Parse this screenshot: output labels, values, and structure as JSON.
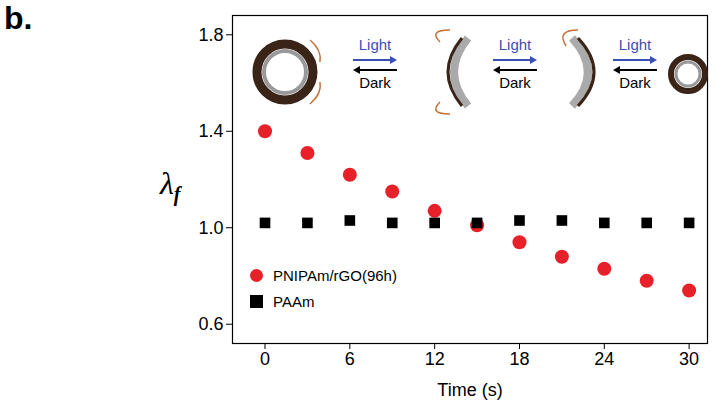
{
  "chart_data": {
    "type": "scatter",
    "panel_label": "b.",
    "x_label": "Time (s)",
    "y_label": "λf",
    "x": [
      0,
      3,
      6,
      9,
      12,
      15,
      18,
      21,
      24,
      27,
      30
    ],
    "series": [
      {
        "name": "PNIPAm/rGO(96h)",
        "color": "#e8202a",
        "marker": "circle",
        "values": [
          1.4,
          1.31,
          1.22,
          1.15,
          1.07,
          1.01,
          0.94,
          0.88,
          0.83,
          0.78,
          0.74
        ]
      },
      {
        "name": "PAAm",
        "color": "#000000",
        "marker": "square",
        "values": [
          1.02,
          1.02,
          1.03,
          1.02,
          1.02,
          1.02,
          1.03,
          1.03,
          1.02,
          1.02,
          1.02
        ]
      }
    ],
    "xlim": [
      -2.3,
      31.3
    ],
    "xticks": [
      0,
      6,
      12,
      18,
      24,
      30
    ],
    "ylim": [
      0.52,
      1.88
    ],
    "yticks": [
      {
        "value": 0.6,
        "label": "0.6"
      },
      {
        "value": 1.0,
        "label": "1.0"
      },
      {
        "value": 1.4,
        "label": "1.4"
      },
      {
        "value": 1.8,
        "label": "1.8"
      }
    ],
    "legend": "lower left",
    "annotations": [
      [
        "Light",
        "Dark"
      ],
      [
        "Light",
        "Dark"
      ],
      [
        "Light",
        "Dark"
      ]
    ]
  }
}
